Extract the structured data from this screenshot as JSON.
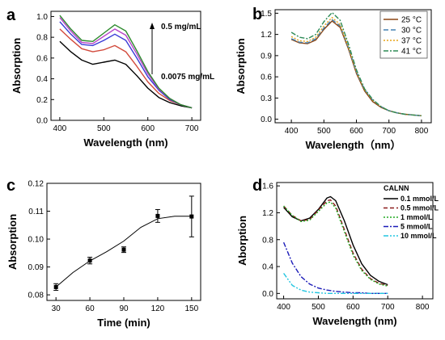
{
  "chart_data": [
    {
      "panel": "a",
      "type": "line",
      "xlabel": "Wavelength (nm)",
      "ylabel": "Absorption",
      "xlim": [
        380,
        720
      ],
      "ylim": [
        0.0,
        1.05
      ],
      "xticks": [
        400,
        500,
        600,
        700
      ],
      "yticks": [
        0.0,
        0.2,
        0.4,
        0.6,
        0.8,
        1.0
      ],
      "annotation_top": "0.5 mg/mL",
      "annotation_bottom": "0.0075 mg/mL",
      "series": [
        {
          "color": "#000000",
          "x": [
            400,
            425,
            450,
            475,
            500,
            525,
            550,
            575,
            600,
            625,
            650,
            675,
            700
          ],
          "y": [
            0.76,
            0.66,
            0.58,
            0.54,
            0.56,
            0.58,
            0.54,
            0.43,
            0.31,
            0.22,
            0.17,
            0.14,
            0.12
          ]
        },
        {
          "color": "#d24a3c",
          "x": [
            400,
            425,
            450,
            475,
            500,
            525,
            550,
            575,
            600,
            625,
            650,
            675,
            700
          ],
          "y": [
            0.88,
            0.78,
            0.69,
            0.66,
            0.68,
            0.72,
            0.66,
            0.52,
            0.37,
            0.26,
            0.19,
            0.15,
            0.12
          ]
        },
        {
          "color": "#3a3ad6",
          "x": [
            400,
            425,
            450,
            475,
            500,
            525,
            550,
            575,
            600,
            625,
            650,
            675,
            700
          ],
          "y": [
            0.95,
            0.83,
            0.73,
            0.72,
            0.77,
            0.83,
            0.77,
            0.6,
            0.42,
            0.29,
            0.2,
            0.15,
            0.12
          ]
        },
        {
          "color": "#b642c8",
          "x": [
            400,
            425,
            450,
            475,
            500,
            525,
            550,
            575,
            600,
            625,
            650,
            675,
            700
          ],
          "y": [
            0.99,
            0.86,
            0.75,
            0.74,
            0.81,
            0.88,
            0.82,
            0.64,
            0.45,
            0.3,
            0.21,
            0.15,
            0.12
          ]
        },
        {
          "color": "#2e8b2e",
          "x": [
            400,
            425,
            450,
            475,
            500,
            525,
            550,
            575,
            600,
            625,
            650,
            675,
            700
          ],
          "y": [
            1.01,
            0.88,
            0.77,
            0.76,
            0.84,
            0.92,
            0.86,
            0.67,
            0.47,
            0.31,
            0.21,
            0.15,
            0.12
          ]
        }
      ]
    },
    {
      "panel": "b",
      "type": "line",
      "xlabel": "Wavelength（nm）",
      "ylabel": "Absorption",
      "xlim": [
        350,
        830
      ],
      "ylim": [
        -0.05,
        1.55
      ],
      "xticks": [
        400,
        500,
        600,
        700,
        800
      ],
      "yticks": [
        0.0,
        0.3,
        0.6,
        0.9,
        1.2,
        1.5
      ],
      "legend_position": "top-right",
      "series": [
        {
          "name": "25 °C",
          "color": "#8b4513",
          "dash": "",
          "x": [
            400,
            425,
            450,
            475,
            500,
            525,
            550,
            575,
            600,
            625,
            650,
            675,
            700,
            725,
            750,
            775,
            800
          ],
          "y": [
            1.13,
            1.08,
            1.07,
            1.12,
            1.27,
            1.39,
            1.3,
            1.0,
            0.65,
            0.4,
            0.25,
            0.17,
            0.12,
            0.09,
            0.07,
            0.06,
            0.05
          ]
        },
        {
          "name": "30 °C",
          "color": "#4682b4",
          "dash": "6,3",
          "x": [
            400,
            425,
            450,
            475,
            500,
            525,
            550,
            575,
            600,
            625,
            650,
            675,
            700,
            725,
            750,
            775,
            800
          ],
          "y": [
            1.14,
            1.09,
            1.08,
            1.14,
            1.29,
            1.41,
            1.32,
            1.02,
            0.67,
            0.42,
            0.27,
            0.18,
            0.12,
            0.09,
            0.07,
            0.06,
            0.05
          ]
        },
        {
          "name": "37 °C",
          "color": "#e8a317",
          "dash": "2,2",
          "x": [
            400,
            425,
            450,
            475,
            500,
            525,
            550,
            575,
            600,
            625,
            650,
            675,
            700,
            725,
            750,
            775,
            800
          ],
          "y": [
            1.17,
            1.11,
            1.1,
            1.16,
            1.32,
            1.44,
            1.34,
            1.03,
            0.68,
            0.42,
            0.27,
            0.18,
            0.12,
            0.09,
            0.07,
            0.06,
            0.05
          ]
        },
        {
          "name": "41 °C",
          "color": "#2e8b57",
          "dash": "6,2,2,2",
          "x": [
            400,
            425,
            450,
            475,
            500,
            525,
            550,
            575,
            600,
            625,
            650,
            675,
            700,
            725,
            750,
            775,
            800
          ],
          "y": [
            1.23,
            1.16,
            1.14,
            1.2,
            1.38,
            1.51,
            1.4,
            1.07,
            0.7,
            0.43,
            0.28,
            0.18,
            0.12,
            0.09,
            0.07,
            0.06,
            0.05
          ]
        }
      ]
    },
    {
      "panel": "c",
      "type": "scatter",
      "xlabel": "Time (min)",
      "ylabel": "Absorption",
      "xlim": [
        22,
        158
      ],
      "ylim": [
        0.078,
        0.12
      ],
      "xticks": [
        30,
        60,
        90,
        120,
        150
      ],
      "yticks": [
        0.08,
        0.09,
        0.1,
        0.11,
        0.12
      ],
      "series": [
        {
          "x": [
            30,
            60,
            90,
            120,
            150
          ],
          "y": [
            0.0828,
            0.0923,
            0.0962,
            0.1083,
            0.1081
          ],
          "err": [
            0.0012,
            0.0012,
            0.001,
            0.0023,
            0.0073
          ]
        }
      ],
      "fit": {
        "x": [
          30,
          45,
          60,
          75,
          90,
          105,
          120,
          135,
          150
        ],
        "y": [
          0.0828,
          0.088,
          0.0922,
          0.0955,
          0.0993,
          0.1042,
          0.1073,
          0.1082,
          0.1082
        ]
      }
    },
    {
      "panel": "d",
      "type": "line",
      "xlabel": "Wavelength (nm)",
      "ylabel": "Aborption",
      "xlim": [
        380,
        830
      ],
      "ylim": [
        -0.08,
        1.65
      ],
      "xticks": [
        400,
        500,
        600,
        700,
        800
      ],
      "yticks": [
        0.0,
        0.4,
        0.8,
        1.2,
        1.6
      ],
      "legend_title": "CALNN",
      "legend_position": "top-right",
      "series": [
        {
          "name": "0.1 mmol/L",
          "color": "#000000",
          "dash": "",
          "x": [
            400,
            425,
            450,
            475,
            500,
            525,
            535,
            550,
            575,
            600,
            625,
            650,
            675,
            700
          ],
          "y": [
            1.28,
            1.14,
            1.08,
            1.12,
            1.25,
            1.42,
            1.44,
            1.38,
            1.08,
            0.72,
            0.44,
            0.27,
            0.18,
            0.13
          ]
        },
        {
          "name": "0.5 mmol/L",
          "color": "#8b1a1a",
          "dash": "5,3",
          "x": [
            400,
            425,
            450,
            475,
            500,
            525,
            535,
            550,
            575,
            600,
            625,
            650,
            675,
            700
          ],
          "y": [
            1.3,
            1.16,
            1.08,
            1.1,
            1.24,
            1.38,
            1.39,
            1.3,
            0.95,
            0.6,
            0.36,
            0.22,
            0.15,
            0.12
          ]
        },
        {
          "name": "1 mmol/L",
          "color": "#22aa22",
          "dash": "2,2",
          "x": [
            400,
            425,
            450,
            475,
            500,
            525,
            535,
            550,
            575,
            600,
            625,
            650,
            675,
            700
          ],
          "y": [
            1.3,
            1.16,
            1.07,
            1.09,
            1.22,
            1.35,
            1.36,
            1.27,
            0.92,
            0.57,
            0.34,
            0.21,
            0.14,
            0.11
          ]
        },
        {
          "name": "5 mmol/L",
          "color": "#1a1ab8",
          "dash": "6,2,2,2",
          "x": [
            400,
            425,
            450,
            475,
            500,
            525,
            550,
            575,
            600,
            625,
            650,
            675,
            700
          ],
          "y": [
            0.76,
            0.45,
            0.25,
            0.14,
            0.08,
            0.05,
            0.03,
            0.02,
            0.01,
            0.01,
            0.0,
            0.0,
            0.0
          ]
        },
        {
          "name": "10 mmol/L",
          "color": "#22c5e0",
          "dash": "6,2,2,2,2,2",
          "x": [
            400,
            425,
            450,
            475,
            500,
            525,
            550,
            575,
            600,
            625,
            650,
            675,
            700
          ],
          "y": [
            0.3,
            0.12,
            0.05,
            0.02,
            0.01,
            0.0,
            0.0,
            0.0,
            0.0,
            0.0,
            0.0,
            0.0,
            0.0
          ]
        }
      ]
    }
  ]
}
